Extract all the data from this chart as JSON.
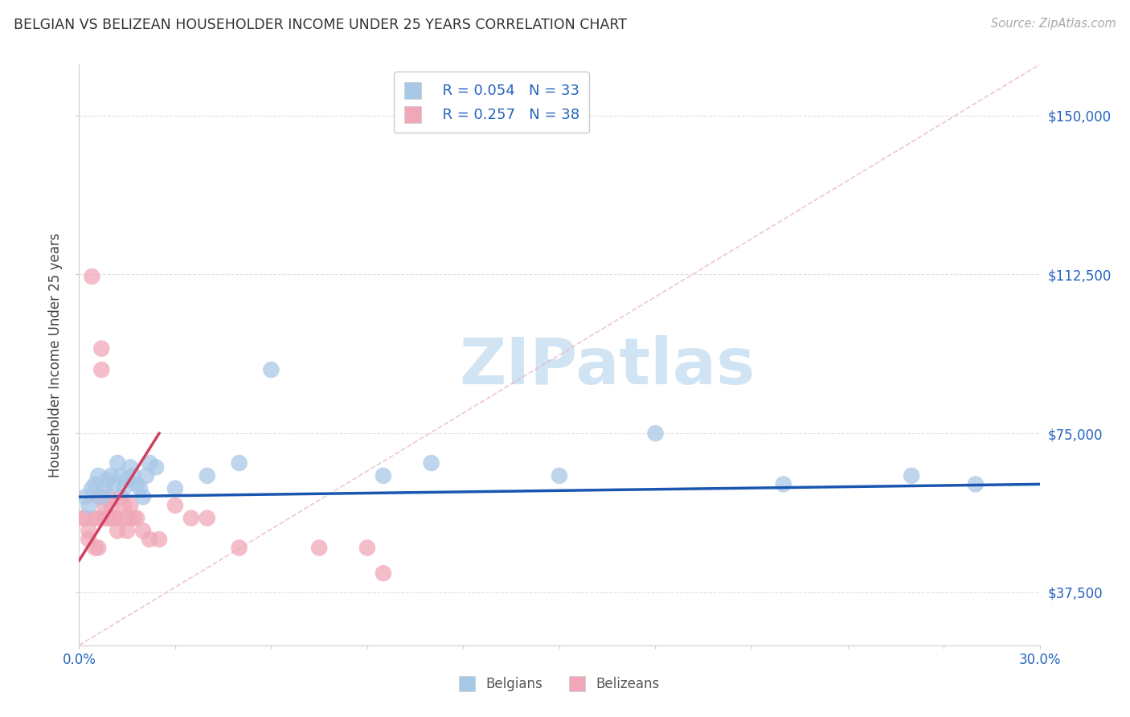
{
  "title": "BELGIAN VS BELIZEAN HOUSEHOLDER INCOME UNDER 25 YEARS CORRELATION CHART",
  "source": "Source: ZipAtlas.com",
  "ylabel": "Householder Income Under 25 years",
  "xlim": [
    0.0,
    0.3
  ],
  "ylim": [
    25000,
    162000
  ],
  "ytick_positions": [
    37500,
    75000,
    112500,
    150000
  ],
  "ytick_labels": [
    "$37,500",
    "$75,000",
    "$112,500",
    "$150,000"
  ],
  "belgian_color": "#A8C8E8",
  "belizean_color": "#F0A8B8",
  "belgian_line_color": "#1A56B0",
  "belizean_line_color": "#D04060",
  "belizean_dash_color": "#E8A0A8",
  "watermark_text": "ZIPatlas",
  "watermark_color": "#D0E4F4",
  "legend_r_belgian": "R = 0.054",
  "legend_n_belgian": "N = 33",
  "legend_r_belizean": "R = 0.257",
  "legend_n_belizean": "N = 38",
  "background_color": "#FFFFFF",
  "grid_color": "#E0E0E0",
  "belgians_x": [
    0.002,
    0.003,
    0.004,
    0.005,
    0.006,
    0.007,
    0.008,
    0.009,
    0.01,
    0.011,
    0.012,
    0.013,
    0.014,
    0.015,
    0.016,
    0.017,
    0.018,
    0.019,
    0.02,
    0.021,
    0.022,
    0.024,
    0.03,
    0.04,
    0.05,
    0.06,
    0.095,
    0.11,
    0.15,
    0.18,
    0.22,
    0.26,
    0.28
  ],
  "belgians_y": [
    60000,
    58000,
    62000,
    63000,
    65000,
    60000,
    62000,
    64000,
    65000,
    63000,
    68000,
    65000,
    62000,
    64000,
    67000,
    65000,
    63000,
    62000,
    60000,
    65000,
    68000,
    67000,
    62000,
    65000,
    68000,
    90000,
    65000,
    68000,
    65000,
    75000,
    63000,
    65000,
    63000
  ],
  "belizeans_x": [
    0.001,
    0.002,
    0.003,
    0.003,
    0.004,
    0.005,
    0.005,
    0.006,
    0.006,
    0.006,
    0.007,
    0.007,
    0.008,
    0.008,
    0.009,
    0.009,
    0.01,
    0.01,
    0.011,
    0.012,
    0.012,
    0.013,
    0.014,
    0.015,
    0.015,
    0.016,
    0.017,
    0.018,
    0.02,
    0.022,
    0.025,
    0.03,
    0.035,
    0.04,
    0.05,
    0.075,
    0.09,
    0.095
  ],
  "belizeans_y": [
    55000,
    55000,
    52000,
    50000,
    112000,
    55000,
    48000,
    55000,
    60000,
    48000,
    90000,
    95000,
    58000,
    55000,
    60000,
    55000,
    55000,
    58000,
    55000,
    55000,
    52000,
    60000,
    58000,
    55000,
    52000,
    58000,
    55000,
    55000,
    52000,
    50000,
    50000,
    58000,
    55000,
    55000,
    48000,
    48000,
    48000,
    42000
  ]
}
